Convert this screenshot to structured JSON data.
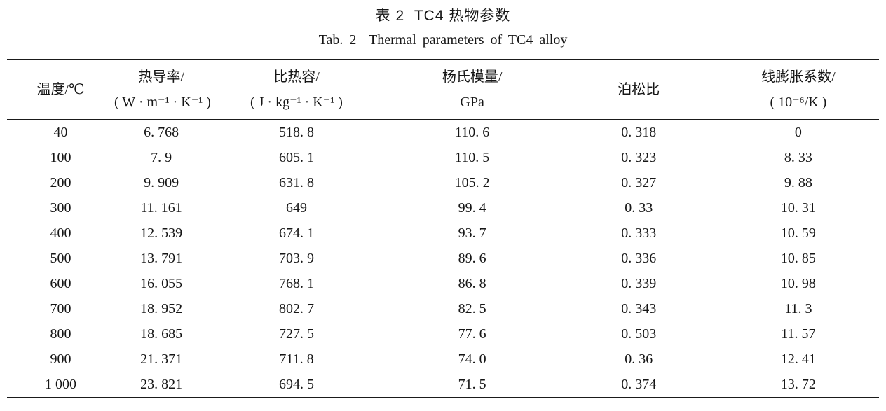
{
  "captions": {
    "zh": "表 2  TC4 热物参数",
    "en": "Tab. 2  Thermal parameters of TC4 alloy"
  },
  "table": {
    "columns": [
      {
        "line1": "温度/℃",
        "line2": ""
      },
      {
        "line1": "热导率/",
        "line2": "( W · m⁻¹ · K⁻¹ )"
      },
      {
        "line1": "比热容/",
        "line2": "( J · kg⁻¹ · K⁻¹ )"
      },
      {
        "line1": "杨氏模量/",
        "line2": "GPa"
      },
      {
        "line1": "泊松比",
        "line2": ""
      },
      {
        "line1": "线膨胀系数/",
        "line2": "( 10⁻⁶/K )"
      }
    ],
    "rows": [
      [
        "40",
        "6. 768",
        "518. 8",
        "110. 6",
        "0. 318",
        "0"
      ],
      [
        "100",
        "7. 9",
        "605. 1",
        "110. 5",
        "0. 323",
        "8. 33"
      ],
      [
        "200",
        "9. 909",
        "631. 8",
        "105. 2",
        "0. 327",
        "9. 88"
      ],
      [
        "300",
        "11. 161",
        "649",
        "99. 4",
        "0. 33",
        "10. 31"
      ],
      [
        "400",
        "12. 539",
        "674. 1",
        "93. 7",
        "0. 333",
        "10. 59"
      ],
      [
        "500",
        "13. 791",
        "703. 9",
        "89. 6",
        "0. 336",
        "10. 85"
      ],
      [
        "600",
        "16. 055",
        "768. 1",
        "86. 8",
        "0. 339",
        "10. 98"
      ],
      [
        "700",
        "18. 952",
        "802. 7",
        "82. 5",
        "0. 343",
        "11. 3"
      ],
      [
        "800",
        "18. 685",
        "727. 5",
        "77. 6",
        "0. 503",
        "11. 57"
      ],
      [
        "900",
        "21. 371",
        "711. 8",
        "74. 0",
        "0. 36",
        "12. 41"
      ],
      [
        "1 000",
        "23. 821",
        "694. 5",
        "71. 5",
        "0. 374",
        "13. 72"
      ]
    ]
  },
  "chart_data": {
    "type": "table",
    "title_zh": "表 2 TC4 热物参数",
    "title_en": "Tab. 2 Thermal parameters of TC4 alloy",
    "columns": [
      "温度/℃",
      "热导率/(W·m⁻¹·K⁻¹)",
      "比热容/(J·kg⁻¹·K⁻¹)",
      "杨氏模量/GPa",
      "泊松比",
      "线膨胀系数/(10⁻⁶/K)"
    ],
    "rows": [
      [
        40,
        6.768,
        518.8,
        110.6,
        0.318,
        0
      ],
      [
        100,
        7.9,
        605.1,
        110.5,
        0.323,
        8.33
      ],
      [
        200,
        9.909,
        631.8,
        105.2,
        0.327,
        9.88
      ],
      [
        300,
        11.161,
        649,
        99.4,
        0.33,
        10.31
      ],
      [
        400,
        12.539,
        674.1,
        93.7,
        0.333,
        10.59
      ],
      [
        500,
        13.791,
        703.9,
        89.6,
        0.336,
        10.85
      ],
      [
        600,
        16.055,
        768.1,
        86.8,
        0.339,
        10.98
      ],
      [
        700,
        18.952,
        802.7,
        82.5,
        0.343,
        11.3
      ],
      [
        800,
        18.685,
        727.5,
        77.6,
        0.503,
        11.57
      ],
      [
        900,
        21.371,
        711.8,
        74.0,
        0.36,
        12.41
      ],
      [
        1000,
        23.821,
        694.5,
        71.5,
        0.374,
        13.72
      ]
    ]
  }
}
